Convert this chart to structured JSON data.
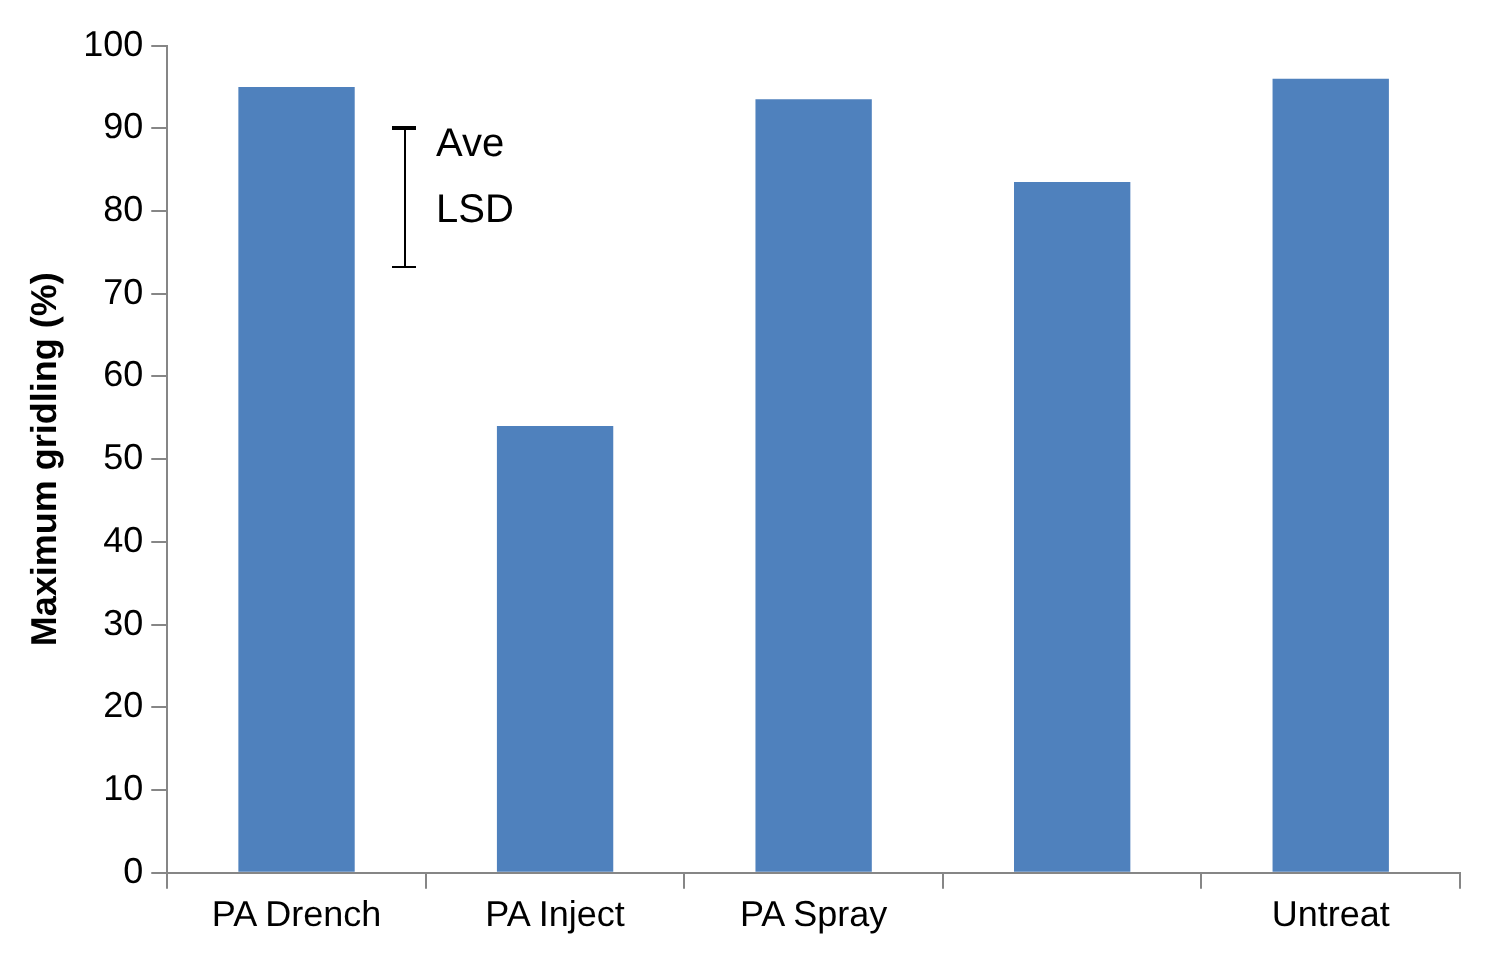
{
  "chart_data": {
    "type": "bar",
    "ylabel": "Maximum gridling (%)",
    "categories": [
      "PA Drench",
      "PA Inject",
      "PA Spray",
      null,
      "Untreat"
    ],
    "values": [
      95,
      54,
      93.5,
      83.5,
      96
    ],
    "color": "#4f81bd",
    "ylim": [
      0,
      100
    ],
    "yticks": [
      0,
      10,
      20,
      30,
      40,
      50,
      60,
      70,
      80,
      90,
      100
    ],
    "grid": false,
    "annotations": [
      "Ave LSD"
    ]
  }
}
